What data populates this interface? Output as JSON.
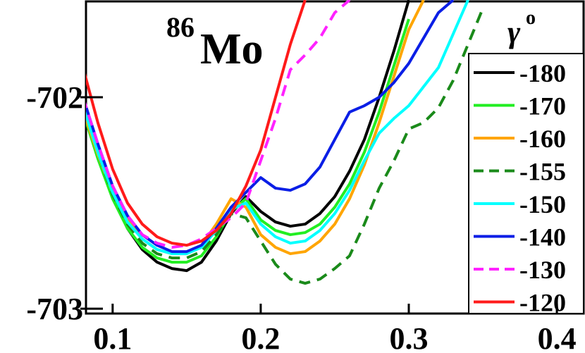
{
  "chart_data": {
    "type": "line",
    "title": "Mo",
    "title_superscript": "86",
    "legend_title": "γ",
    "legend_title_superscript": "o",
    "x": [
      0.08,
      0.09,
      0.1,
      0.11,
      0.12,
      0.13,
      0.14,
      0.15,
      0.16,
      0.17,
      0.18,
      0.19,
      0.2,
      0.21,
      0.22,
      0.23,
      0.24,
      0.25,
      0.26,
      0.27,
      0.28,
      0.29,
      0.3,
      0.31,
      0.32,
      0.33,
      0.34,
      0.35
    ],
    "xlim": [
      0.082,
      0.419
    ],
    "xticks": [
      0.1,
      0.2,
      0.3,
      0.4
    ],
    "ylim": [
      -703.023,
      -701.54
    ],
    "yticks": [
      -702,
      -703
    ],
    "legend": "right",
    "series": [
      {
        "name": "-180",
        "color": "#000000",
        "dash": false,
        "values": [
          -702.05,
          -702.27,
          -702.47,
          -702.62,
          -702.72,
          -702.78,
          -702.81,
          -702.82,
          -702.78,
          -702.68,
          -702.55,
          -702.47,
          -702.54,
          -702.59,
          -702.61,
          -702.6,
          -702.55,
          -702.47,
          -702.35,
          -702.2,
          -702.0,
          -701.78,
          -701.54,
          null,
          null,
          null,
          null,
          null
        ]
      },
      {
        "name": "-170",
        "color": "#22ee22",
        "dash": false,
        "values": [
          -702.07,
          -702.29,
          -702.48,
          -702.62,
          -702.71,
          -702.76,
          -702.78,
          -702.78,
          -702.75,
          -702.66,
          -702.54,
          -702.48,
          -702.58,
          -702.63,
          -702.65,
          -702.64,
          -702.6,
          -702.52,
          -702.41,
          -702.26,
          -702.07,
          -701.85,
          -701.63,
          null,
          null,
          null,
          null,
          null
        ]
      },
      {
        "name": "-160",
        "color": "#ffa500",
        "dash": false,
        "values": [
          -702.06,
          -702.27,
          -702.45,
          -702.58,
          -702.67,
          -702.72,
          -702.74,
          -702.74,
          -702.7,
          -702.6,
          -702.48,
          -702.52,
          -702.65,
          -702.71,
          -702.74,
          -702.73,
          -702.68,
          -702.6,
          -702.48,
          -702.32,
          -702.12,
          -701.9,
          -701.68,
          -701.54,
          null,
          null,
          null,
          null
        ]
      },
      {
        "name": "-155",
        "color": "#1a8a1a",
        "dash": true,
        "values": [
          -702.03,
          -702.26,
          -702.46,
          -702.6,
          -702.69,
          -702.74,
          -702.76,
          -702.76,
          -702.73,
          -702.65,
          -702.55,
          -702.57,
          -702.68,
          -702.79,
          -702.86,
          -702.88,
          -702.86,
          -702.81,
          -702.75,
          -702.6,
          -702.43,
          -702.3,
          -702.15,
          -702.12,
          -702.05,
          -701.92,
          -701.75,
          -701.58
        ]
      },
      {
        "name": "-150",
        "color": "#00ffff",
        "dash": false,
        "values": [
          -702.04,
          -702.26,
          -702.45,
          -702.59,
          -702.67,
          -702.72,
          -702.74,
          -702.74,
          -702.71,
          -702.63,
          -702.53,
          -702.5,
          -702.6,
          -702.66,
          -702.69,
          -702.68,
          -702.63,
          -702.55,
          -702.44,
          -702.3,
          -702.17,
          -702.1,
          -702.04,
          -701.95,
          -701.86,
          -701.7,
          -701.54,
          null
        ]
      },
      {
        "name": "-140",
        "color": "#0a1ee6",
        "dash": false,
        "values": [
          -702.0,
          -702.22,
          -702.42,
          -702.56,
          -702.65,
          -702.7,
          -702.73,
          -702.73,
          -702.7,
          -702.62,
          -702.52,
          -702.45,
          -702.38,
          -702.43,
          -702.44,
          -702.41,
          -702.33,
          -702.2,
          -702.07,
          -702.04,
          -702.0,
          -701.93,
          -701.84,
          -701.72,
          -701.6,
          -701.54,
          null,
          null
        ]
      },
      {
        "name": "-130",
        "color": "#ff22ff",
        "dash": true,
        "values": [
          -702.0,
          -702.22,
          -702.42,
          -702.56,
          -702.65,
          -702.69,
          -702.71,
          -702.7,
          -702.67,
          -702.62,
          -702.57,
          -702.5,
          -702.3,
          -702.1,
          -701.87,
          -701.8,
          -701.72,
          -701.6,
          -701.54,
          null,
          null,
          null,
          null,
          null,
          null,
          null,
          null,
          null
        ]
      },
      {
        "name": "-120",
        "color": "#ff1a1a",
        "dash": false,
        "values": [
          -701.86,
          -702.12,
          -702.34,
          -702.5,
          -702.6,
          -702.66,
          -702.69,
          -702.7,
          -702.68,
          -702.63,
          -702.55,
          -702.42,
          -702.25,
          -702.0,
          -701.75,
          -701.54,
          null,
          null,
          null,
          null,
          null,
          null,
          null,
          null,
          null,
          null,
          null,
          null
        ]
      }
    ]
  }
}
